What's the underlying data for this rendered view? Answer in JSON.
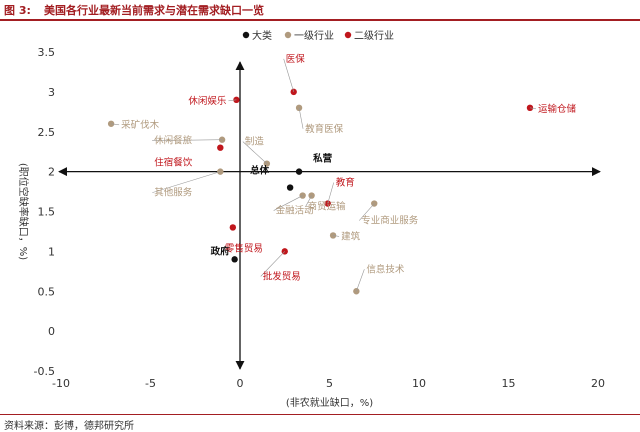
{
  "header": {
    "fig_num": "图 3:",
    "title": "美国各行业最新当前需求与潜在需求缺口一览"
  },
  "footer": {
    "source": "资料来源：彭博，德邦研究所"
  },
  "colors": {
    "total": "#111111",
    "level1": "#b09a7e",
    "level2": "#c0161c",
    "brand": "#a31e22"
  },
  "chart_data": {
    "type": "scatter",
    "xlabel": "(非农就业缺口，%)",
    "ylabel": "(职位空缺率缺口，%)",
    "xlim": [
      -10,
      20
    ],
    "ylim": [
      -0.5,
      3.5
    ],
    "x_ticks": [
      -10,
      -5,
      0,
      5,
      10,
      15,
      20
    ],
    "y_ticks": [
      -0.5,
      0,
      0.5,
      1,
      1.5,
      2,
      2.5,
      3,
      3.5
    ],
    "legend": [
      "大类",
      "一级行业",
      "二级行业"
    ],
    "legend_position": "top-center",
    "axes_cross_at": [
      0,
      2
    ],
    "series": [
      {
        "name": "大类",
        "points": [
          {
            "label": "私营",
            "x": 3.3,
            "y": 2.0
          },
          {
            "label": "总体",
            "x": 2.8,
            "y": 1.8
          },
          {
            "label": "政府",
            "x": -0.3,
            "y": 0.9
          }
        ]
      },
      {
        "name": "一级行业",
        "points": [
          {
            "label": "教育医保",
            "x": 3.3,
            "y": 2.8
          },
          {
            "label": "采矿伐木",
            "x": -7.2,
            "y": 2.6
          },
          {
            "label": "休闲餐旅",
            "x": -1.0,
            "y": 2.4
          },
          {
            "label": "制造",
            "x": 1.5,
            "y": 2.1
          },
          {
            "label": "其他服务",
            "x": -1.1,
            "y": 2.0
          },
          {
            "label": "金融活动",
            "x": 3.5,
            "y": 1.7
          },
          {
            "label": "商贸运输",
            "x": 4.0,
            "y": 1.7
          },
          {
            "label": "专业商业服务",
            "x": 7.5,
            "y": 1.6
          },
          {
            "label": "建筑",
            "x": 5.2,
            "y": 1.2
          },
          {
            "label": "信息技术",
            "x": 6.5,
            "y": 0.5
          }
        ]
      },
      {
        "name": "二级行业",
        "points": [
          {
            "label": "医保",
            "x": 3.0,
            "y": 3.0
          },
          {
            "label": "休闲娱乐",
            "x": -0.2,
            "y": 2.9
          },
          {
            "label": "运输仓储",
            "x": 16.2,
            "y": 2.8
          },
          {
            "label": "住宿餐饮",
            "x": -1.1,
            "y": 2.3
          },
          {
            "label": "教育",
            "x": 4.9,
            "y": 1.6
          },
          {
            "label": "零售贸易",
            "x": -0.4,
            "y": 1.3
          },
          {
            "label": "批发贸易",
            "x": 2.5,
            "y": 1.0
          }
        ]
      }
    ]
  }
}
